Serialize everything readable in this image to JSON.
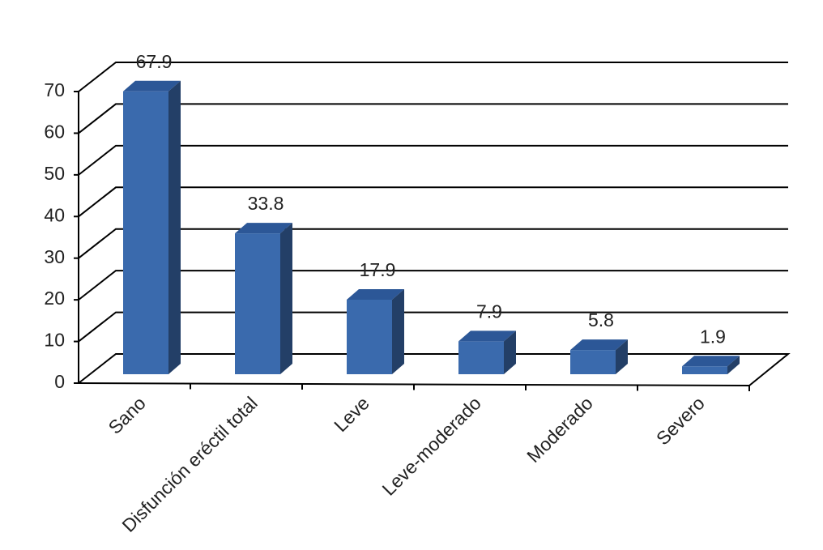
{
  "chart_data": {
    "type": "bar3d",
    "categories": [
      "Sano",
      "Disfunción eréctil total",
      "Leve",
      "Leve-moderado",
      "Moderado",
      "Severo"
    ],
    "values": [
      67.9,
      33.8,
      17.9,
      7.9,
      5.8,
      1.9
    ],
    "color": "#3a6aad",
    "ylim": [
      0,
      70
    ],
    "yticks": [
      0,
      10,
      20,
      30,
      40,
      50,
      60,
      70
    ],
    "grid": true
  }
}
